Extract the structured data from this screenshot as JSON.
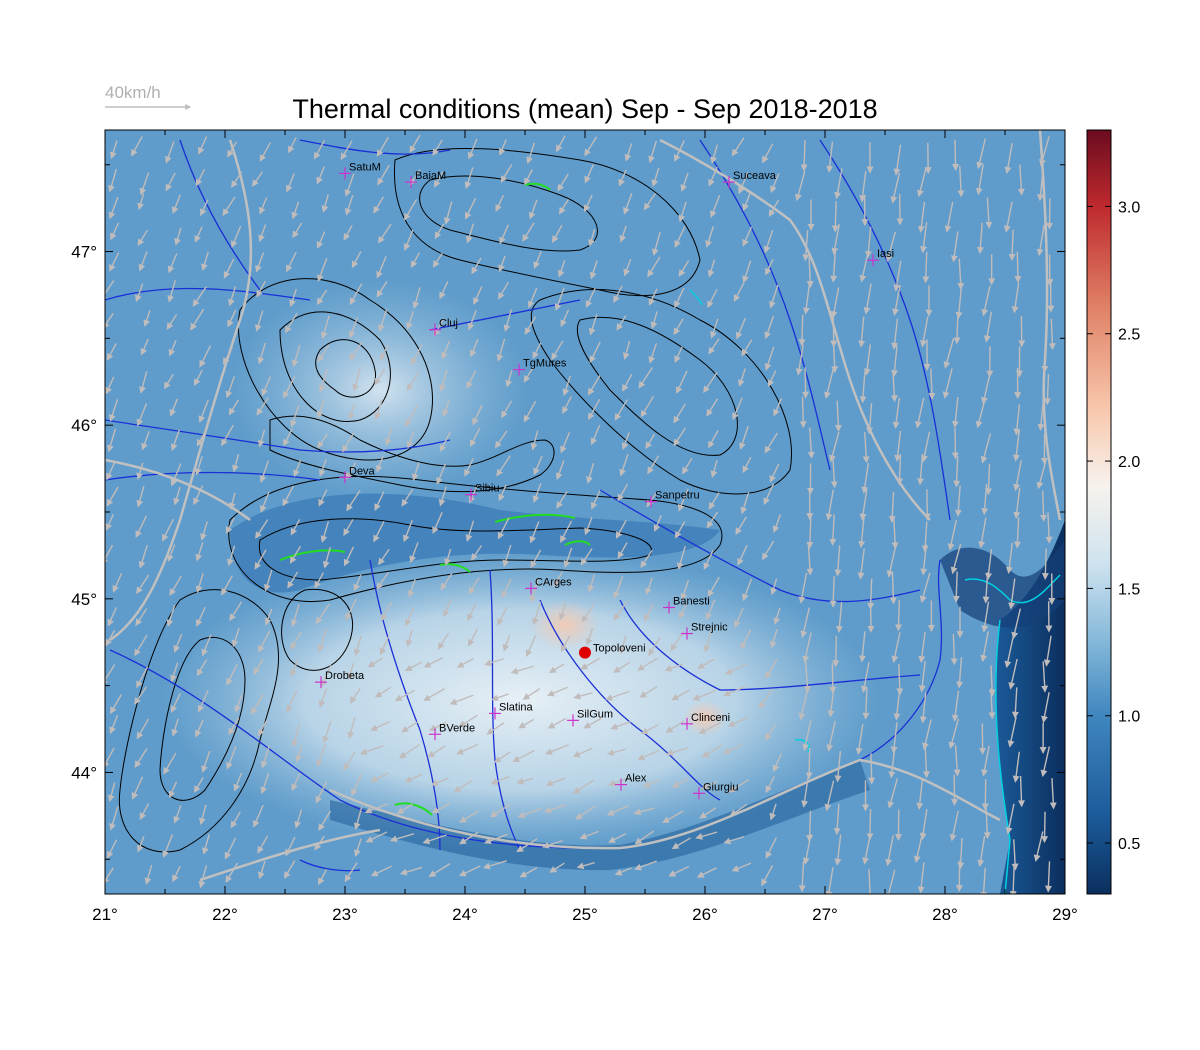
{
  "title": "Thermal conditions (mean) Sep - Sep  2018-2018",
  "wind_legend": {
    "label": "40km/h",
    "color": "#b0b0b0"
  },
  "map": {
    "lon_range": [
      21,
      29
    ],
    "lat_range": [
      43.3,
      47.7
    ],
    "lon_ticks": [
      {
        "value": 21,
        "label": "21°"
      },
      {
        "value": 22,
        "label": "22°"
      },
      {
        "value": 23,
        "label": "23°"
      },
      {
        "value": 24,
        "label": "24°"
      },
      {
        "value": 25,
        "label": "25°"
      },
      {
        "value": 26,
        "label": "26°"
      },
      {
        "value": 27,
        "label": "27°"
      },
      {
        "value": 28,
        "label": "28°"
      },
      {
        "value": 29,
        "label": "29°"
      }
    ],
    "lat_ticks": [
      {
        "value": 44,
        "label": "44°"
      },
      {
        "value": 45,
        "label": "45°"
      },
      {
        "value": 46,
        "label": "46°"
      },
      {
        "value": 47,
        "label": "47°"
      }
    ],
    "colors": {
      "river": "#1a2fd6",
      "border": "#c0c0c0",
      "contour": "#000000",
      "high_contour": "#22dd22",
      "coast": "#00d0e0",
      "marker": "#cc33cc",
      "highlight": "#e00000",
      "wind": "#c0bcbc"
    }
  },
  "colorbar": {
    "range": [
      0.3,
      3.3
    ],
    "ticks": [
      {
        "value": 0.5,
        "label": "0.5"
      },
      {
        "value": 1.0,
        "label": "1.0"
      },
      {
        "value": 1.5,
        "label": "1.5"
      },
      {
        "value": 2.0,
        "label": "2.0"
      },
      {
        "value": 2.5,
        "label": "2.5"
      },
      {
        "value": 3.0,
        "label": "3.0"
      }
    ],
    "stops": [
      {
        "v": 0.3,
        "color": "#0b2f5e"
      },
      {
        "v": 0.6,
        "color": "#1b5a99"
      },
      {
        "v": 1.0,
        "color": "#3f86bf"
      },
      {
        "v": 1.3,
        "color": "#86b9da"
      },
      {
        "v": 1.6,
        "color": "#cfe3ef"
      },
      {
        "v": 1.9,
        "color": "#f7f2ee"
      },
      {
        "v": 2.2,
        "color": "#f8c8ad"
      },
      {
        "v": 2.6,
        "color": "#e08267"
      },
      {
        "v": 3.0,
        "color": "#bf2a2e"
      },
      {
        "v": 3.3,
        "color": "#6b0b1f"
      }
    ]
  },
  "cities": [
    {
      "name": "SatuM",
      "lon": 23.0,
      "lat": 47.45
    },
    {
      "name": "BaiaM",
      "lon": 23.55,
      "lat": 47.4
    },
    {
      "name": "Suceava",
      "lon": 26.2,
      "lat": 47.4
    },
    {
      "name": "Iasi",
      "lon": 27.4,
      "lat": 46.95
    },
    {
      "name": "Cluj",
      "lon": 23.75,
      "lat": 46.55
    },
    {
      "name": "TgMures",
      "lon": 24.45,
      "lat": 46.32
    },
    {
      "name": "Deva",
      "lon": 23.0,
      "lat": 45.7
    },
    {
      "name": "Sibiu",
      "lon": 24.05,
      "lat": 45.6
    },
    {
      "name": "Sanpetru",
      "lon": 25.55,
      "lat": 45.56
    },
    {
      "name": "CArges",
      "lon": 24.55,
      "lat": 45.06
    },
    {
      "name": "Banesti",
      "lon": 25.7,
      "lat": 44.95
    },
    {
      "name": "Strejnic",
      "lon": 25.85,
      "lat": 44.8
    },
    {
      "name": "Drobeta",
      "lon": 22.8,
      "lat": 44.52
    },
    {
      "name": "Slatina",
      "lon": 24.25,
      "lat": 44.34
    },
    {
      "name": "SilGum",
      "lon": 24.9,
      "lat": 44.3
    },
    {
      "name": "Clinceni",
      "lon": 25.85,
      "lat": 44.28
    },
    {
      "name": "BVerde",
      "lon": 23.75,
      "lat": 44.22
    },
    {
      "name": "Alex",
      "lon": 25.3,
      "lat": 43.93
    },
    {
      "name": "Giurgiu",
      "lon": 25.95,
      "lat": 43.88
    }
  ],
  "highlight_station": {
    "name": "Topoloveni",
    "lon": 25.0,
    "lat": 44.69
  }
}
